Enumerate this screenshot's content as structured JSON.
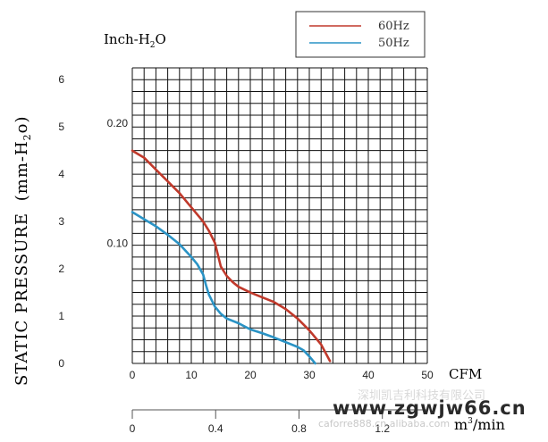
{
  "chart_data": {
    "type": "line",
    "ylabel": "STATIC PRESSURE",
    "ylabel_unit_prefix": "(mm-H",
    "ylabel_unit_sub": "2",
    "ylabel_unit_suffix": "o)",
    "ylabel2_prefix": "Inch-H",
    "ylabel2_sub": "2",
    "ylabel2_suffix": "O",
    "xlabel": "CFM",
    "xlabel2_prefix": "m",
    "xlabel2_sup": "3",
    "xlabel2_suffix": "/min",
    "xlim": [
      0,
      50
    ],
    "ylim": [
      0,
      6
    ],
    "x_ticks": [
      "0",
      "10",
      "20",
      "30",
      "40",
      "50"
    ],
    "y_ticks": [
      "0",
      "1",
      "2",
      "3",
      "4",
      "5",
      "6"
    ],
    "y2_ticks": [
      {
        "label": "0.10",
        "value": 0.1
      },
      {
        "label": "0.20",
        "value": 0.2
      }
    ],
    "x2_ticks": [
      {
        "label": "0",
        "value": 0
      },
      {
        "label": "0.4",
        "value": 0.4
      },
      {
        "label": "0.8",
        "value": 0.8
      },
      {
        "label": "1.2",
        "value": 1.2
      }
    ],
    "grid": true,
    "legend_position": "top-right",
    "series": [
      {
        "name": "60Hz",
        "color": "#c0392b",
        "points": [
          [
            0,
            4.5
          ],
          [
            2,
            4.35
          ],
          [
            4,
            4.1
          ],
          [
            6,
            3.85
          ],
          [
            8,
            3.6
          ],
          [
            10,
            3.3
          ],
          [
            12,
            3.0
          ],
          [
            13,
            2.8
          ],
          [
            14,
            2.55
          ],
          [
            14.5,
            2.3
          ],
          [
            15,
            2.05
          ],
          [
            16,
            1.85
          ],
          [
            17,
            1.72
          ],
          [
            18,
            1.62
          ],
          [
            20,
            1.5
          ],
          [
            22,
            1.4
          ],
          [
            24,
            1.3
          ],
          [
            26,
            1.15
          ],
          [
            28,
            0.95
          ],
          [
            30,
            0.7
          ],
          [
            32,
            0.4
          ],
          [
            33.5,
            0.05
          ]
        ]
      },
      {
        "name": "50Hz",
        "color": "#2a93c5",
        "points": [
          [
            0,
            3.2
          ],
          [
            2,
            3.05
          ],
          [
            4,
            2.9
          ],
          [
            6,
            2.72
          ],
          [
            8,
            2.52
          ],
          [
            10,
            2.25
          ],
          [
            11,
            2.1
          ],
          [
            12,
            1.88
          ],
          [
            12.5,
            1.65
          ],
          [
            13,
            1.45
          ],
          [
            14,
            1.2
          ],
          [
            15,
            1.05
          ],
          [
            16,
            0.95
          ],
          [
            18,
            0.85
          ],
          [
            20,
            0.72
          ],
          [
            22,
            0.64
          ],
          [
            24,
            0.55
          ],
          [
            26,
            0.45
          ],
          [
            28,
            0.35
          ],
          [
            29,
            0.28
          ],
          [
            30,
            0.15
          ],
          [
            31,
            0.0
          ]
        ]
      }
    ]
  },
  "watermark": {
    "line1": "深圳凯吉利科技有限公司",
    "line2": "www.zgwjw66.cn",
    "line3": "caforre888.cn.alibaba.com"
  }
}
